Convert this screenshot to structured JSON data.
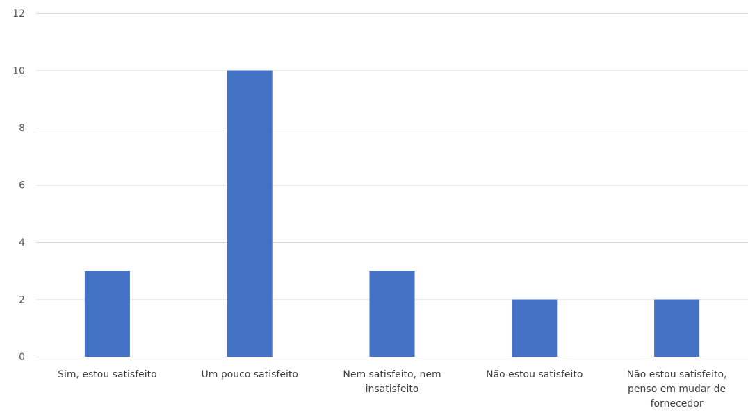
{
  "chart_data": {
    "type": "bar",
    "categories": [
      [
        "Sim, estou satisfeito"
      ],
      [
        "Um pouco satisfeito"
      ],
      [
        "Nem satisfeito, nem",
        "insatisfeito"
      ],
      [
        "Não estou satisfeito"
      ],
      [
        "Não estou satisfeito,",
        "penso em mudar de",
        "fornecedor"
      ]
    ],
    "values": [
      3,
      10,
      3,
      2,
      2
    ],
    "ylim": [
      0,
      12
    ],
    "yticks": [
      0,
      2,
      4,
      6,
      8,
      10,
      12
    ],
    "grid": true,
    "legend": "none",
    "bar_color": "#4472c4"
  }
}
